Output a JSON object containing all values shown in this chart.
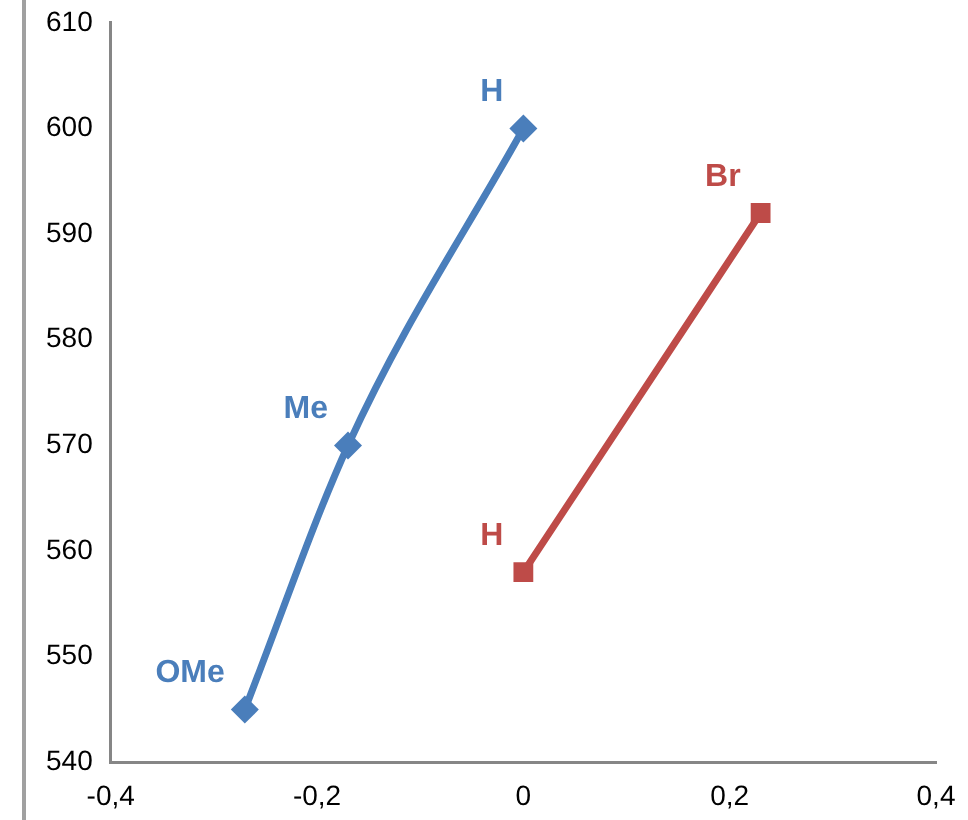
{
  "chart_data": {
    "type": "line",
    "grid": false,
    "legend": false,
    "xlim": [
      -0.4,
      0.4
    ],
    "xticks": [
      {
        "value": -0.4,
        "label": "-0,4"
      },
      {
        "value": -0.2,
        "label": "-0,2"
      },
      0,
      {
        "value": 0.2,
        "label": "0,2"
      },
      {
        "value": 0.4,
        "label": "0,4"
      }
    ],
    "ylim": [
      540,
      610
    ],
    "yticks": [
      540,
      550,
      560,
      570,
      580,
      590,
      600,
      610
    ],
    "series": [
      {
        "color": "#4a7ebb",
        "marker": "diamond",
        "x": [
          -0.27,
          -0.17,
          0
        ],
        "values": [
          545,
          570,
          600
        ]
      },
      {
        "color": "#be4b48",
        "marker": "square",
        "x": [
          0,
          0.23
        ],
        "values": [
          558,
          592
        ]
      }
    ],
    "annotations": [
      {
        "text": "OMe",
        "x": -0.27,
        "y": 545
      },
      {
        "text": "Me",
        "x": -0.17,
        "y": 570
      },
      {
        "text": "H",
        "x": 0,
        "y": 600
      },
      {
        "text": "H",
        "x": 0,
        "y": 558
      },
      {
        "text": "Br",
        "x": 0.23,
        "y": 592
      }
    ]
  }
}
